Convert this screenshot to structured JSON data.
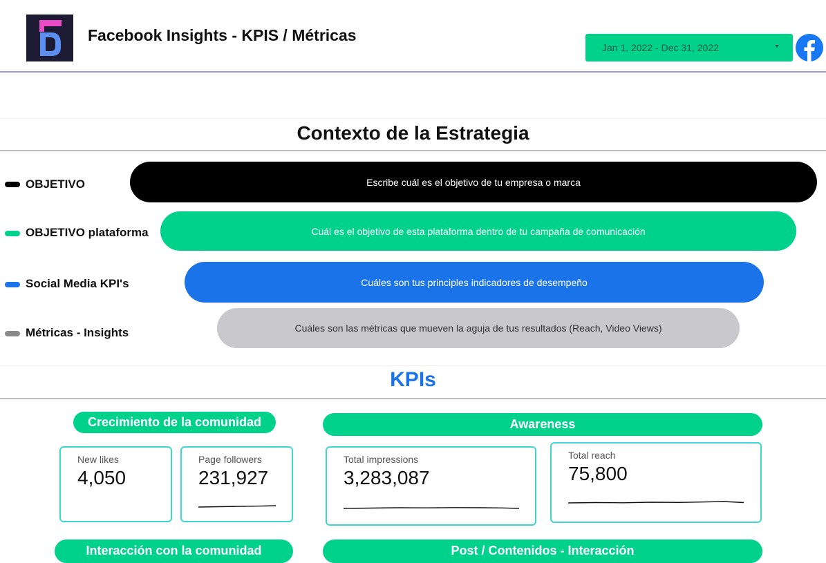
{
  "header": {
    "title": "Facebook Insights - KPIS / Métricas",
    "date_range": "Jan 1, 2022 - Dec 31, 2022",
    "logo_icon": "brand-d-logo-icon",
    "facebook_icon": "facebook-icon"
  },
  "context": {
    "title": "Contexto de la Estrategia",
    "rows": [
      {
        "label": "OBJETIVO",
        "text": "Escribe cuál es el objetivo de tu empresa o marca",
        "color": "#000000"
      },
      {
        "label": "OBJETIVO plataforma",
        "text": "Cuál es el objetivo de esta plataforma dentro de tu campaña de comunicación",
        "color": "#00d18b"
      },
      {
        "label": "Social Media KPI's",
        "text": "Cuáles son tus principles indicadores de desempeño",
        "color": "#1a73e8"
      },
      {
        "label": "Métricas - Insights",
        "text": "Cuáles son las métricas que mueven la aguja de tus resultados  (Reach, Video Views)",
        "color": "#c9c8cc"
      }
    ]
  },
  "kpis": {
    "title": "KPIs",
    "groups": [
      {
        "title": "Crecimiento de la comunidad",
        "cards": [
          {
            "label": "New likes",
            "value": "4,050"
          },
          {
            "label": "Page followers",
            "value": "231,927"
          }
        ]
      },
      {
        "title": "Awareness",
        "cards": [
          {
            "label": "Total impressions",
            "value": "3,283,087"
          },
          {
            "label": "Total reach",
            "value": "75,800"
          }
        ]
      }
    ],
    "lower_sections": [
      "Interacción con la comunidad",
      "Post / Contenidos - Interacción"
    ]
  },
  "colors": {
    "accent_green": "#00d18b",
    "accent_blue": "#1a73e8",
    "card_border": "#3dd6d0",
    "header_rule": "#9d99c9"
  }
}
